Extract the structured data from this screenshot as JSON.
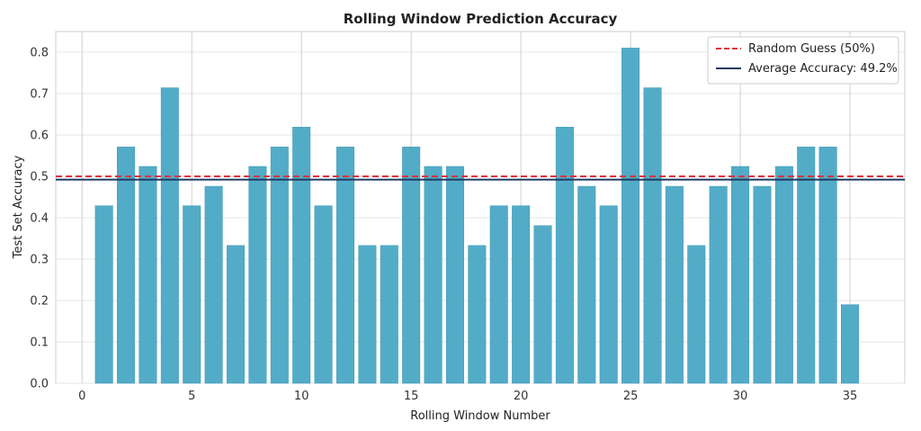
{
  "chart_data": {
    "type": "bar",
    "title": "Rolling Window Prediction Accuracy",
    "xlabel": "Rolling Window Number",
    "ylabel": "Test Set Accuracy",
    "x": [
      1,
      2,
      3,
      4,
      5,
      6,
      7,
      8,
      9,
      10,
      11,
      12,
      13,
      14,
      15,
      16,
      17,
      18,
      19,
      20,
      21,
      22,
      23,
      24,
      25,
      26,
      27,
      28,
      29,
      30,
      31,
      32,
      33,
      34,
      35
    ],
    "values": [
      0.429,
      0.571,
      0.524,
      0.714,
      0.429,
      0.476,
      0.333,
      0.524,
      0.571,
      0.619,
      0.429,
      0.571,
      0.333,
      0.333,
      0.571,
      0.524,
      0.524,
      0.333,
      0.429,
      0.429,
      0.381,
      0.619,
      0.476,
      0.429,
      0.81,
      0.714,
      0.476,
      0.333,
      0.476,
      0.524,
      0.476,
      0.524,
      0.571,
      0.571,
      0.19
    ],
    "xlim": [
      -1.2,
      37.5
    ],
    "ylim": [
      0,
      0.85
    ],
    "xticks": [
      0,
      5,
      10,
      15,
      20,
      25,
      30,
      35
    ],
    "yticks": [
      0.0,
      0.1,
      0.2,
      0.3,
      0.4,
      0.5,
      0.6,
      0.7,
      0.8
    ],
    "ytick_labels": [
      "0.0",
      "0.1",
      "0.2",
      "0.3",
      "0.4",
      "0.5",
      "0.6",
      "0.7",
      "0.8"
    ],
    "grid": true,
    "legend_position": "top-right",
    "reference_lines": [
      {
        "label": "Random Guess (50%)",
        "value": 0.5,
        "style": "dashed",
        "color": "#e0303c"
      },
      {
        "label": "Average Accuracy: 49.2%",
        "value": 0.492,
        "style": "solid",
        "color": "#1f3a5f"
      }
    ],
    "bar_color": "#4aa8c4",
    "bar_edge_color": "#3f97b2"
  }
}
